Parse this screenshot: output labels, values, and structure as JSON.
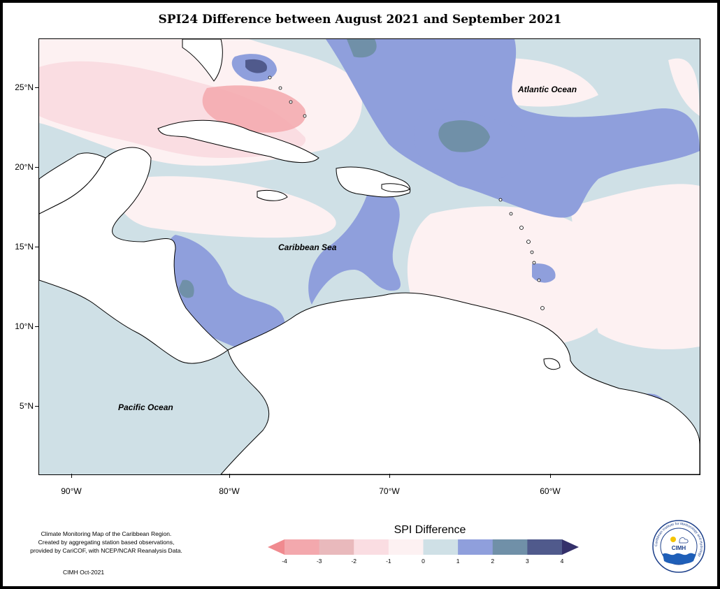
{
  "title": "SPI24 Difference between August 2021 and September 2021",
  "labels": {
    "atlantic": "Atlantic Ocean",
    "caribbean": "Caribbean Sea",
    "pacific": "Pacific Ocean"
  },
  "axes": {
    "lat_ticks": [
      "25°N",
      "20°N",
      "15°N",
      "10°N",
      "5°N"
    ],
    "lon_ticks": [
      "90°W",
      "80°W",
      "70°W",
      "60°W"
    ]
  },
  "credit": {
    "line1": "Climate Monitoring Map of the Caribbean Region.",
    "line2": "Created by aggregating station based observations,",
    "line3": "provided by CariCOF, with NCEP/NCAR Reanalysis Data.",
    "date": "CIMH Oct-2021"
  },
  "legend": {
    "title": "SPI Difference",
    "ticks": [
      "-4",
      "-3",
      "-2",
      "-1",
      "0",
      "1",
      "2",
      "3",
      "4"
    ],
    "colors": [
      "#f08a8f",
      "#f3a8ad",
      "#e9b9bc",
      "#fadde2",
      "#fdf1f2",
      "#cfe0e6",
      "#8f9fdc",
      "#7090a8",
      "#505a8c",
      "#34306a"
    ]
  },
  "logo": {
    "ring_text": "Caribbean Institute for Meteorology and Hydrology",
    "acronym": "CIMH"
  }
}
